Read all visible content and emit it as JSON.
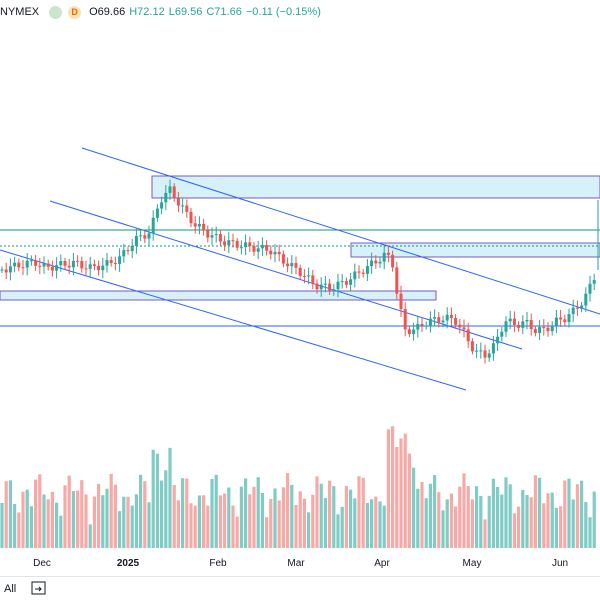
{
  "legend": {
    "symbol": "NYMEX",
    "badge_d": "D",
    "open": "O69.66",
    "high": "H72.12",
    "low": "L69.56",
    "close": "C71.66",
    "change": "−0.11 (−0.15%)"
  },
  "x_axis": {
    "labels": [
      "Dec",
      "2025",
      "Feb",
      "Mar",
      "Apr",
      "May",
      "Jun"
    ]
  },
  "bottom_bar": {
    "range_all": "All",
    "icon": "goto-date-icon"
  },
  "colors": {
    "up": "#26a69a",
    "down": "#ef5350",
    "up_vol": "#80cbc4",
    "down_vol": "#f7a9a7",
    "trendline": "#2962ff",
    "zone_fill": "#d6f1f7",
    "zone_border": "#7e57c2",
    "hline": "#089981"
  },
  "chart_data": {
    "type": "candlestick",
    "title": "",
    "series": [
      {
        "name": "price",
        "values": "daily OHLC candles"
      }
    ],
    "xlabel": "",
    "ylabel": "",
    "x_tick_labels": [
      "Dec",
      "2025",
      "Feb",
      "Mar",
      "Apr",
      "May",
      "Jun"
    ],
    "legend_values": {
      "open": 69.66,
      "high": 72.12,
      "low": 69.56,
      "close": 71.66,
      "change": -0.11,
      "change_pct": -0.15
    }
  }
}
